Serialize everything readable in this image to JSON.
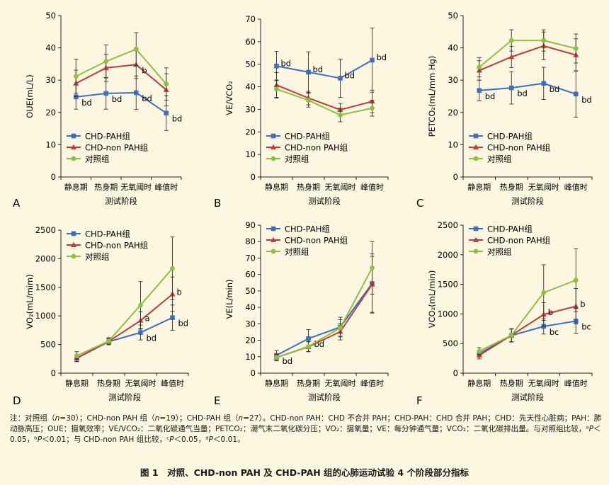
{
  "colors": {
    "CHD-PAH组": "#3a6fc4",
    "CHD-non PAH组": "#c43a36",
    "对照组": "#8dc23c"
  },
  "chart_data": [
    {
      "type": "line",
      "panel": "A",
      "ylabel": "OUE(mL/L)",
      "xlabel": "测试阶段",
      "categories": [
        "静息期",
        "热身期",
        "无氧阈时",
        "峰值时"
      ],
      "ylim": [
        0,
        50
      ],
      "yticks": [
        0,
        10,
        20,
        30,
        40,
        50
      ],
      "legend": "bottom-left",
      "series": [
        {
          "name": "CHD-PAH组",
          "values": [
            24.8,
            25.9,
            26.1,
            19.8
          ],
          "err": [
            3.8,
            4.9,
            5.2,
            5.4
          ],
          "labels": [
            "bd",
            "bd",
            "bd",
            "bd"
          ]
        },
        {
          "name": "CHD-non PAH组",
          "values": [
            29.0,
            33.8,
            34.8,
            27.0
          ],
          "err": [
            4.1,
            4.2,
            4.3,
            5.0
          ],
          "labels": [
            "",
            "",
            "b",
            ""
          ]
        },
        {
          "name": "对照组",
          "values": [
            31.2,
            35.8,
            39.6,
            28.8
          ],
          "err": [
            5.3,
            5.1,
            5.1,
            5.0
          ],
          "labels": [
            "",
            "",
            "",
            ""
          ]
        }
      ]
    },
    {
      "type": "line",
      "panel": "B",
      "ylabel": "VE/VCO₂",
      "xlabel": "测试阶段",
      "categories": [
        "静息期",
        "热身期",
        "无氧阈时",
        "峰值时"
      ],
      "ylim": [
        0,
        70
      ],
      "yticks": [
        0,
        10,
        20,
        30,
        40,
        50,
        60,
        70
      ],
      "legend": "bottom-left",
      "series": [
        {
          "name": "CHD-PAH组",
          "values": [
            49.2,
            46.5,
            43.8,
            51.8
          ],
          "err": [
            6.5,
            9.0,
            8.5,
            14.2
          ],
          "labels": [
            "bd",
            "bd",
            "bd",
            "bd"
          ]
        },
        {
          "name": "CHD-non PAH组",
          "values": [
            40.8,
            35.0,
            29.8,
            33.5
          ],
          "err": [
            5.5,
            3.0,
            2.8,
            5.0
          ],
          "labels": [
            "",
            "",
            "",
            ""
          ]
        },
        {
          "name": "对照组",
          "values": [
            39.0,
            34.0,
            27.5,
            30.5
          ],
          "err": [
            4.0,
            3.0,
            3.0,
            3.5
          ],
          "labels": [
            "",
            "",
            "",
            ""
          ]
        }
      ]
    },
    {
      "type": "line",
      "panel": "C",
      "ylabel": "PETCO₂(mL/mm Hg)",
      "xlabel": "测试阶段",
      "categories": [
        "静息期",
        "热身期",
        "无氧阈时",
        "峰值时"
      ],
      "ylim": [
        0,
        50
      ],
      "yticks": [
        0,
        10,
        20,
        30,
        40,
        50
      ],
      "legend": "bottom-left",
      "series": [
        {
          "name": "CHD-PAH组",
          "values": [
            26.8,
            27.6,
            29.0,
            25.7
          ],
          "err": [
            3.2,
            5.0,
            5.0,
            7.2
          ],
          "labels": [
            "bd",
            "bd",
            "bd",
            "bd"
          ]
        },
        {
          "name": "CHD-non PAH组",
          "values": [
            33.0,
            37.2,
            40.6,
            37.8
          ],
          "err": [
            3.0,
            3.3,
            4.3,
            5.0
          ],
          "labels": [
            "",
            "",
            "",
            ""
          ]
        },
        {
          "name": "对照组",
          "values": [
            34.0,
            42.3,
            42.3,
            39.8
          ],
          "err": [
            3.0,
            3.3,
            3.3,
            4.5
          ],
          "labels": [
            "",
            "",
            "",
            ""
          ]
        }
      ]
    },
    {
      "type": "line",
      "panel": "D",
      "ylabel": "VO₂(mL/mim)",
      "xlabel": "测试阶段",
      "categories": [
        "静息期",
        "热身期",
        "无氧阈时",
        "峰值时"
      ],
      "ylim": [
        0,
        2500
      ],
      "yticks": [
        0,
        500,
        1000,
        1500,
        2000,
        2500
      ],
      "legend": "top-left",
      "series": [
        {
          "name": "CHD-PAH组",
          "values": [
            260,
            550,
            710,
            970
          ],
          "err": [
            60,
            50,
            130,
            220
          ],
          "labels": [
            "",
            "",
            "bd",
            "bd"
          ]
        },
        {
          "name": "CHD-non PAH组",
          "values": [
            265,
            555,
            920,
            1380
          ],
          "err": [
            60,
            60,
            150,
            300
          ],
          "labels": [
            "",
            "",
            "a",
            "b"
          ]
        },
        {
          "name": "对照组",
          "values": [
            305,
            560,
            1190,
            1830
          ],
          "err": [
            70,
            60,
            410,
            550
          ],
          "labels": [
            "",
            "",
            "",
            ""
          ]
        }
      ]
    },
    {
      "type": "line",
      "panel": "E",
      "ylabel": "VE(L/min)",
      "xlabel": "测试阶段",
      "categories": [
        "静息期",
        "热身期",
        "无氧阈时",
        "峰值时"
      ],
      "ylim": [
        0,
        90
      ],
      "yticks": [
        0,
        10,
        20,
        30,
        40,
        50,
        60,
        70,
        80,
        90
      ],
      "legend": "top-left",
      "series": [
        {
          "name": "CHD-PAH组",
          "values": [
            10.8,
            21.0,
            28.0,
            54.5
          ],
          "err": [
            3.0,
            5.5,
            6.0,
            18.0
          ],
          "labels": [
            "bd",
            "bd",
            "",
            ""
          ]
        },
        {
          "name": "CHD-non PAH组",
          "values": [
            9.5,
            16.0,
            25.2,
            54.0
          ],
          "err": [
            2.0,
            3.0,
            5.0,
            17.0
          ],
          "labels": [
            "",
            "",
            "",
            ""
          ]
        },
        {
          "name": "对照组",
          "values": [
            9.5,
            16.2,
            27.5,
            64.0
          ],
          "err": [
            2.0,
            3.0,
            5.0,
            16.0
          ],
          "labels": [
            "",
            "",
            "",
            ""
          ]
        }
      ]
    },
    {
      "type": "line",
      "panel": "F",
      "ylabel": "VCO₂(mL/min)",
      "xlabel": "测试阶段",
      "categories": [
        "静息期",
        "热身期",
        "无氧阈时",
        "峰值时"
      ],
      "ylim": [
        0,
        2500
      ],
      "yticks": [
        0,
        500,
        1000,
        1500,
        2000,
        2500
      ],
      "legend": "top-left",
      "series": [
        {
          "name": "CHD-PAH组",
          "values": [
            330,
            635,
            790,
            880
          ],
          "err": [
            50,
            110,
            130,
            210
          ],
          "labels": [
            "",
            "",
            "bc",
            "bc"
          ]
        },
        {
          "name": "CHD-non PAH组",
          "values": [
            300,
            640,
            990,
            1130
          ],
          "err": [
            60,
            110,
            200,
            300
          ],
          "labels": [
            "",
            "",
            "b",
            "b"
          ]
        },
        {
          "name": "对照组",
          "values": [
            370,
            640,
            1360,
            1570
          ],
          "err": [
            60,
            110,
            470,
            530
          ],
          "labels": [
            "",
            "",
            "",
            ""
          ]
        }
      ]
    }
  ],
  "note": {
    "prefix": "注：对照组（",
    "n_var": "n",
    "part1": "=30）；CHD-non PAH 组（",
    "part2": "=19）；CHD-PAH 组（",
    "part3": "=27）。CHD-non PAH：CHD 不合并 PAH；CHD-PAH：CHD 合并 PAH；CHD：先天性心脏病；PAH：肺动脉高压；OUE：摄氧效率；VE/VCO₂：二氧化碳通气当量；PETCO₂：潮气末二氧化碳分压；VO₂：摄氧量；VE：每分钟通气量；VCO₂：二氧化碳排出量。与对照组比较，ᵃ",
    "p_var": "P",
    "part4": "＜0.05，ᵇ",
    "part5": "＜0.01；与 CHD-non PAH 组比较，ᶜ",
    "part6": "＜0.05，ᵈ",
    "part7": "＜0.01。"
  },
  "caption": "图 1　对照、CHD-non PAH 及 CHD-PAH 组的心肺运动试验 4 个阶段部分指标"
}
